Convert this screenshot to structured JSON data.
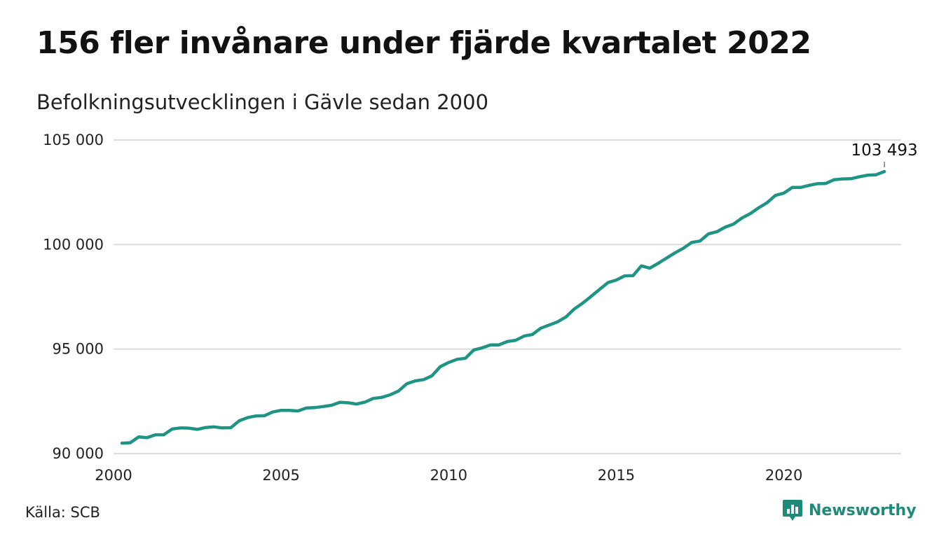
{
  "source_label": "Källa: SCB",
  "brand": {
    "name": "Newsworthy",
    "icon": "newsworthy-logo-icon",
    "color": "#1f8a78"
  },
  "chart_data": {
    "type": "line",
    "title": "156 fler invånare under fjärde kvartalet 2022",
    "subtitle": "Befolkningsutvecklingen i Gävle sedan 2000",
    "xlabel": "",
    "ylabel": "",
    "xlim": [
      2000,
      2023.5
    ],
    "ylim": [
      90000,
      105000
    ],
    "x_ticks": [
      2000,
      2005,
      2010,
      2015,
      2020
    ],
    "y_ticks": [
      90000,
      95000,
      100000,
      105000
    ],
    "y_tick_labels": [
      "90 000",
      "95 000",
      "100 000",
      "105 000"
    ],
    "grid": true,
    "line_color": "#1f9484",
    "series": [
      {
        "x": [
          2000.25,
          2000.5,
          2000.75,
          2001.0,
          2001.25,
          2001.5,
          2001.75,
          2002.0,
          2002.25,
          2002.5,
          2002.75,
          2003.0,
          2003.25,
          2003.5,
          2003.75,
          2004.0,
          2004.25,
          2004.5,
          2004.75,
          2005.0,
          2005.25,
          2005.5,
          2005.75,
          2006.0,
          2006.25,
          2006.5,
          2006.75,
          2007.0,
          2007.25,
          2007.5,
          2007.75,
          2008.0,
          2008.25,
          2008.5,
          2008.75,
          2009.0,
          2009.25,
          2009.5,
          2009.75,
          2010.0,
          2010.25,
          2010.5,
          2010.75,
          2011.0,
          2011.25,
          2011.5,
          2011.75,
          2012.0,
          2012.25,
          2012.5,
          2012.75,
          2013.0,
          2013.25,
          2013.5,
          2013.75,
          2014.0,
          2014.25,
          2014.5,
          2014.75,
          2015.0,
          2015.25,
          2015.5,
          2015.75,
          2016.0,
          2016.25,
          2016.5,
          2016.75,
          2017.0,
          2017.25,
          2017.5,
          2017.75,
          2018.0,
          2018.25,
          2018.5,
          2018.75,
          2019.0,
          2019.25,
          2019.5,
          2019.75,
          2020.0,
          2020.25,
          2020.5,
          2020.75,
          2021.0,
          2021.25,
          2021.5,
          2021.75,
          2022.0,
          2022.25,
          2022.5,
          2022.75,
          2023.0
        ],
        "values": [
          90500,
          90520,
          90800,
          90760,
          90900,
          90900,
          91180,
          91230,
          91220,
          91160,
          91250,
          91280,
          91230,
          91240,
          91570,
          91720,
          91800,
          91810,
          91990,
          92070,
          92070,
          92040,
          92180,
          92200,
          92250,
          92310,
          92450,
          92430,
          92370,
          92460,
          92640,
          92690,
          92810,
          92990,
          93340,
          93480,
          93540,
          93720,
          94160,
          94360,
          94510,
          94560,
          94960,
          95060,
          95200,
          95200,
          95360,
          95420,
          95620,
          95700,
          96000,
          96150,
          96300,
          96540,
          96920,
          97200,
          97520,
          97850,
          98180,
          98300,
          98500,
          98510,
          98980,
          98870,
          99100,
          99350,
          99600,
          99820,
          100100,
          100170,
          100510,
          100610,
          100830,
          100980,
          101270,
          101480,
          101760,
          102000,
          102350,
          102460,
          102730,
          102730,
          102830,
          102910,
          102920,
          103100,
          103140,
          103150,
          103240,
          103320,
          103337,
          103493
        ]
      }
    ],
    "annotation": {
      "x": 2023.0,
      "y": 103493,
      "label": "103 493"
    }
  }
}
